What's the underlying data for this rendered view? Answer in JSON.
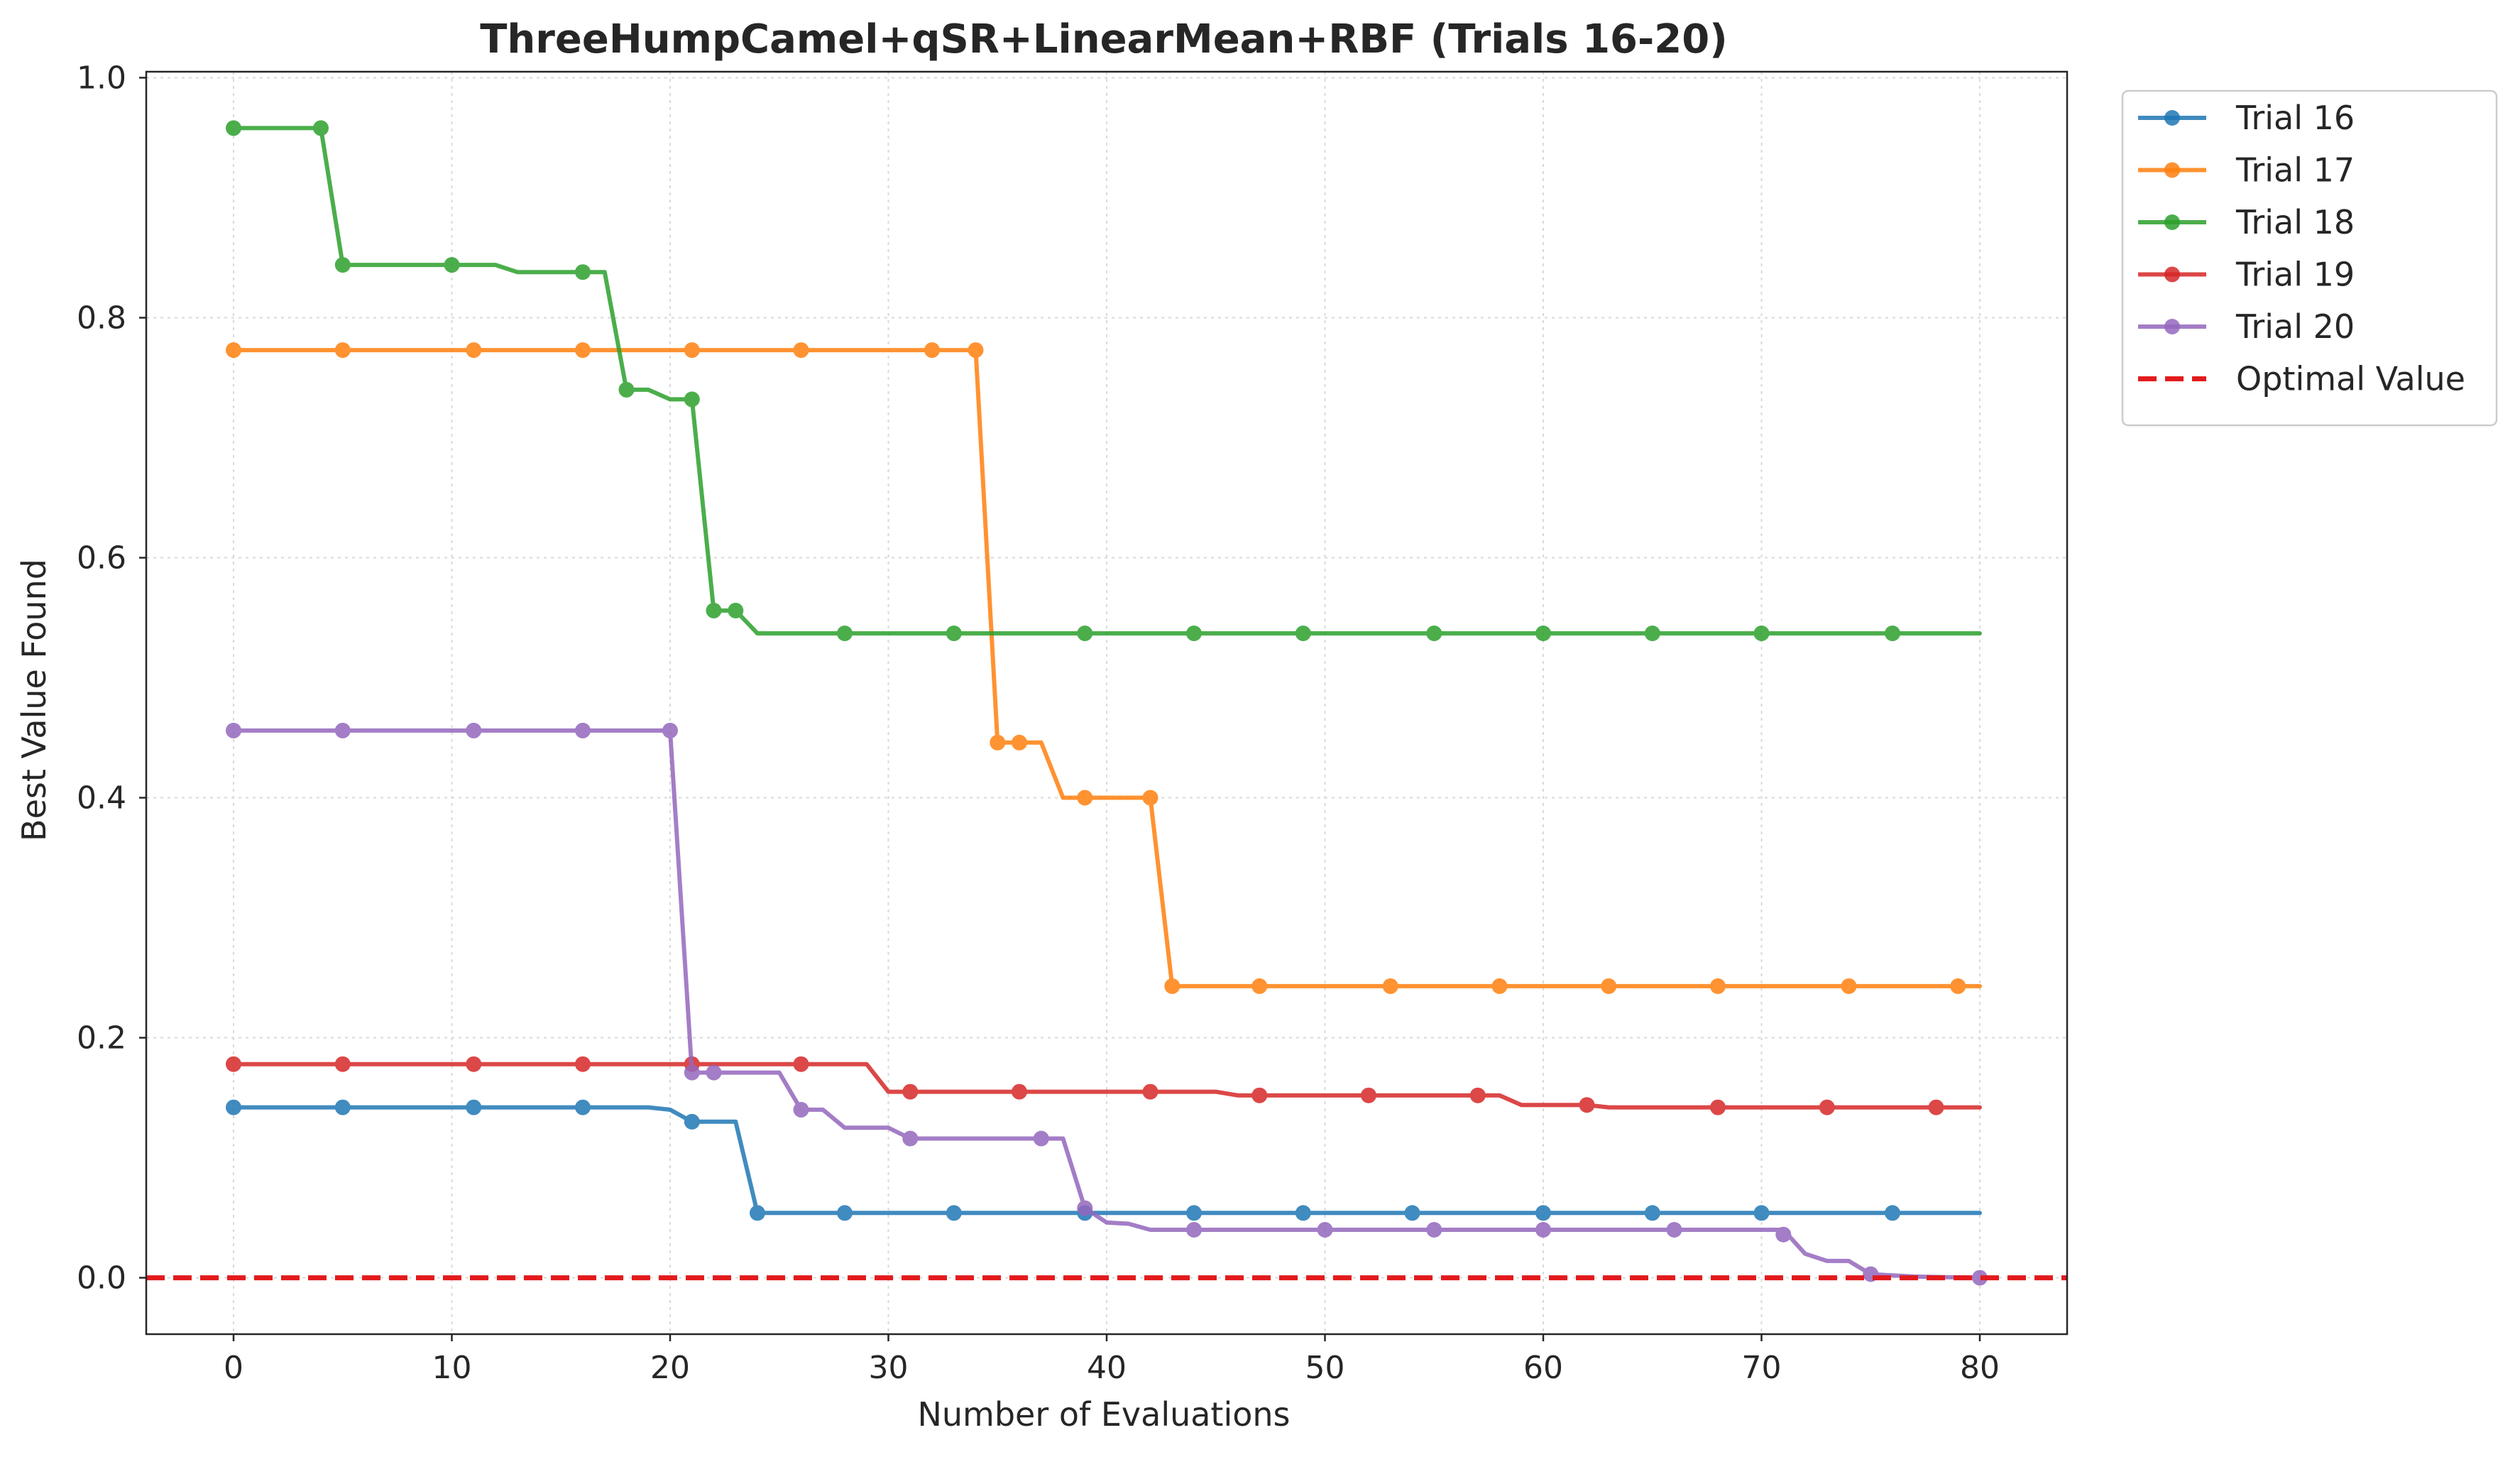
{
  "chart_data": {
    "type": "line",
    "title": "ThreeHumpCamel+qSR+LinearMean+RBF (Trials 16-20)",
    "xlabel": "Number of Evaluations",
    "ylabel": "Best Value Found",
    "xlim": [
      -4,
      84
    ],
    "ylim": [
      -0.047,
      1.005
    ],
    "xticks": [
      0,
      10,
      20,
      30,
      40,
      50,
      60,
      70,
      80
    ],
    "yticks": [
      0.0,
      0.2,
      0.4,
      0.6,
      0.8,
      1.0
    ],
    "xtick_labels": [
      "0",
      "10",
      "20",
      "30",
      "40",
      "50",
      "60",
      "70",
      "80"
    ],
    "ytick_labels": [
      "0.0",
      "0.2",
      "0.4",
      "0.6",
      "0.8",
      "1.0"
    ],
    "grid": true,
    "legend_position": "outside-top-right",
    "series": [
      {
        "name": "Trial 16",
        "color": "#1f77b4",
        "line": [
          [
            0,
            0.142
          ],
          [
            19,
            0.142
          ],
          [
            20,
            0.14
          ],
          [
            21,
            0.13
          ],
          [
            23,
            0.13
          ],
          [
            24,
            0.054
          ],
          [
            80,
            0.054
          ]
        ],
        "markers": [
          [
            0,
            0.142
          ],
          [
            5,
            0.142
          ],
          [
            11,
            0.142
          ],
          [
            16,
            0.142
          ],
          [
            21,
            0.13
          ],
          [
            24,
            0.054
          ],
          [
            28,
            0.054
          ],
          [
            33,
            0.054
          ],
          [
            39,
            0.054
          ],
          [
            44,
            0.054
          ],
          [
            49,
            0.054
          ],
          [
            54,
            0.054
          ],
          [
            60,
            0.054
          ],
          [
            65,
            0.054
          ],
          [
            70,
            0.054
          ],
          [
            76,
            0.054
          ]
        ]
      },
      {
        "name": "Trial 17",
        "color": "#ff7f0e",
        "line": [
          [
            0,
            0.773
          ],
          [
            34,
            0.773
          ],
          [
            35,
            0.446
          ],
          [
            37,
            0.446
          ],
          [
            38,
            0.4
          ],
          [
            42,
            0.4
          ],
          [
            43,
            0.243
          ],
          [
            80,
            0.243
          ]
        ],
        "markers": [
          [
            0,
            0.773
          ],
          [
            5,
            0.773
          ],
          [
            11,
            0.773
          ],
          [
            16,
            0.773
          ],
          [
            21,
            0.773
          ],
          [
            26,
            0.773
          ],
          [
            32,
            0.773
          ],
          [
            34,
            0.773
          ],
          [
            35,
            0.446
          ],
          [
            36,
            0.446
          ],
          [
            39,
            0.4
          ],
          [
            42,
            0.4
          ],
          [
            43,
            0.243
          ],
          [
            47,
            0.243
          ],
          [
            53,
            0.243
          ],
          [
            58,
            0.243
          ],
          [
            63,
            0.243
          ],
          [
            68,
            0.243
          ],
          [
            74,
            0.243
          ],
          [
            79,
            0.243
          ]
        ]
      },
      {
        "name": "Trial 18",
        "color": "#2ca02c",
        "line": [
          [
            0,
            0.958
          ],
          [
            4,
            0.958
          ],
          [
            5,
            0.844
          ],
          [
            12,
            0.844
          ],
          [
            13,
            0.838
          ],
          [
            17,
            0.838
          ],
          [
            18,
            0.74
          ],
          [
            19,
            0.74
          ],
          [
            20,
            0.732
          ],
          [
            21,
            0.732
          ],
          [
            22,
            0.556
          ],
          [
            23,
            0.556
          ],
          [
            24,
            0.537
          ],
          [
            80,
            0.537
          ]
        ],
        "markers": [
          [
            0,
            0.958
          ],
          [
            4,
            0.958
          ],
          [
            5,
            0.844
          ],
          [
            10,
            0.844
          ],
          [
            16,
            0.838
          ],
          [
            18,
            0.74
          ],
          [
            21,
            0.732
          ],
          [
            22,
            0.556
          ],
          [
            23,
            0.556
          ],
          [
            28,
            0.537
          ],
          [
            33,
            0.537
          ],
          [
            39,
            0.537
          ],
          [
            44,
            0.537
          ],
          [
            49,
            0.537
          ],
          [
            55,
            0.537
          ],
          [
            60,
            0.537
          ],
          [
            65,
            0.537
          ],
          [
            70,
            0.537
          ],
          [
            76,
            0.537
          ]
        ]
      },
      {
        "name": "Trial 19",
        "color": "#d62728",
        "line": [
          [
            0,
            0.178
          ],
          [
            29,
            0.178
          ],
          [
            30,
            0.155
          ],
          [
            45,
            0.155
          ],
          [
            46,
            0.152
          ],
          [
            58,
            0.152
          ],
          [
            59,
            0.144
          ],
          [
            62,
            0.144
          ],
          [
            63,
            0.142
          ],
          [
            80,
            0.142
          ]
        ],
        "markers": [
          [
            0,
            0.178
          ],
          [
            5,
            0.178
          ],
          [
            11,
            0.178
          ],
          [
            16,
            0.178
          ],
          [
            21,
            0.178
          ],
          [
            26,
            0.178
          ],
          [
            31,
            0.155
          ],
          [
            36,
            0.155
          ],
          [
            42,
            0.155
          ],
          [
            47,
            0.152
          ],
          [
            52,
            0.152
          ],
          [
            57,
            0.152
          ],
          [
            62,
            0.144
          ],
          [
            68,
            0.142
          ],
          [
            73,
            0.142
          ],
          [
            78,
            0.142
          ]
        ]
      },
      {
        "name": "Trial 20",
        "color": "#9467bd",
        "line": [
          [
            0,
            0.456
          ],
          [
            20,
            0.456
          ],
          [
            21,
            0.171
          ],
          [
            25,
            0.171
          ],
          [
            26,
            0.14
          ],
          [
            27,
            0.14
          ],
          [
            28,
            0.125
          ],
          [
            30,
            0.125
          ],
          [
            31,
            0.116
          ],
          [
            38,
            0.116
          ],
          [
            39,
            0.058
          ],
          [
            40,
            0.046
          ],
          [
            41,
            0.045
          ],
          [
            42,
            0.04
          ],
          [
            71,
            0.04
          ],
          [
            72,
            0.02
          ],
          [
            73,
            0.014
          ],
          [
            74,
            0.014
          ],
          [
            75,
            0.003
          ],
          [
            76,
            0.002
          ],
          [
            77,
            0.001
          ],
          [
            80,
            0.0
          ]
        ],
        "markers": [
          [
            0,
            0.456
          ],
          [
            5,
            0.456
          ],
          [
            11,
            0.456
          ],
          [
            16,
            0.456
          ],
          [
            20,
            0.456
          ],
          [
            21,
            0.171
          ],
          [
            22,
            0.171
          ],
          [
            26,
            0.14
          ],
          [
            31,
            0.116
          ],
          [
            37,
            0.116
          ],
          [
            39,
            0.058
          ],
          [
            44,
            0.04
          ],
          [
            50,
            0.04
          ],
          [
            55,
            0.04
          ],
          [
            60,
            0.04
          ],
          [
            66,
            0.04
          ],
          [
            71,
            0.036
          ],
          [
            75,
            0.003
          ],
          [
            80,
            0.0
          ]
        ]
      }
    ],
    "reference_lines": [
      {
        "name": "Optimal Value",
        "y": 0.0,
        "color": "#e31a1c",
        "style": "dashed"
      }
    ]
  }
}
